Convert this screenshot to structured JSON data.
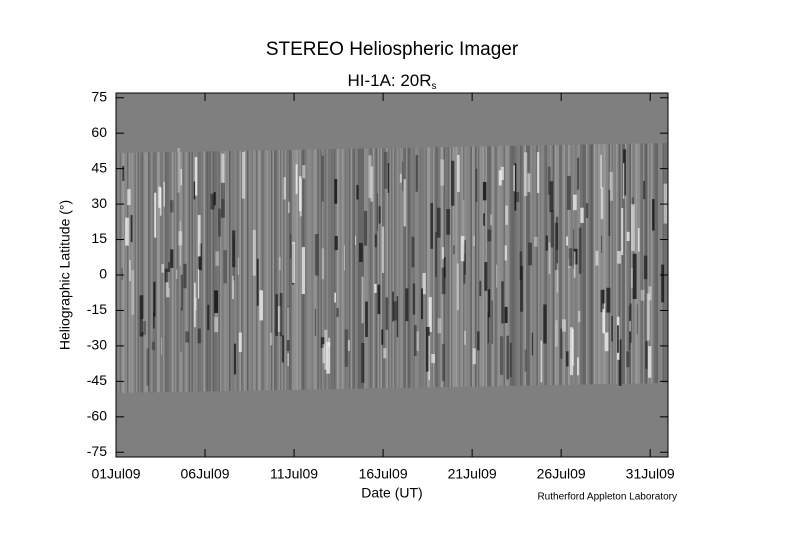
{
  "chart_data": {
    "type": "image",
    "title": "STEREO Heliospheric Imager",
    "subtitle": {
      "text": "HI-1A: 20R",
      "sub": "s"
    },
    "y_label": "Heliographic Latitude (°)",
    "x_label": "Date (UT)",
    "credit": "Rutherford Appleton Laboratory",
    "xlim": [
      1,
      32
    ],
    "xticks": [
      {
        "value": 1,
        "label": "01Jul09"
      },
      {
        "value": 6,
        "label": "06Jul09"
      },
      {
        "value": 11,
        "label": "11Jul09"
      },
      {
        "value": 16,
        "label": "16Jul09"
      },
      {
        "value": 21,
        "label": "21Jul09"
      },
      {
        "value": 26,
        "label": "26Jul09"
      },
      {
        "value": 31,
        "label": "31Jul09"
      }
    ],
    "ylim": [
      -77,
      77
    ],
    "yticks": [
      -75,
      -60,
      -45,
      -30,
      -15,
      0,
      15,
      30,
      45,
      60,
      75
    ]
  }
}
